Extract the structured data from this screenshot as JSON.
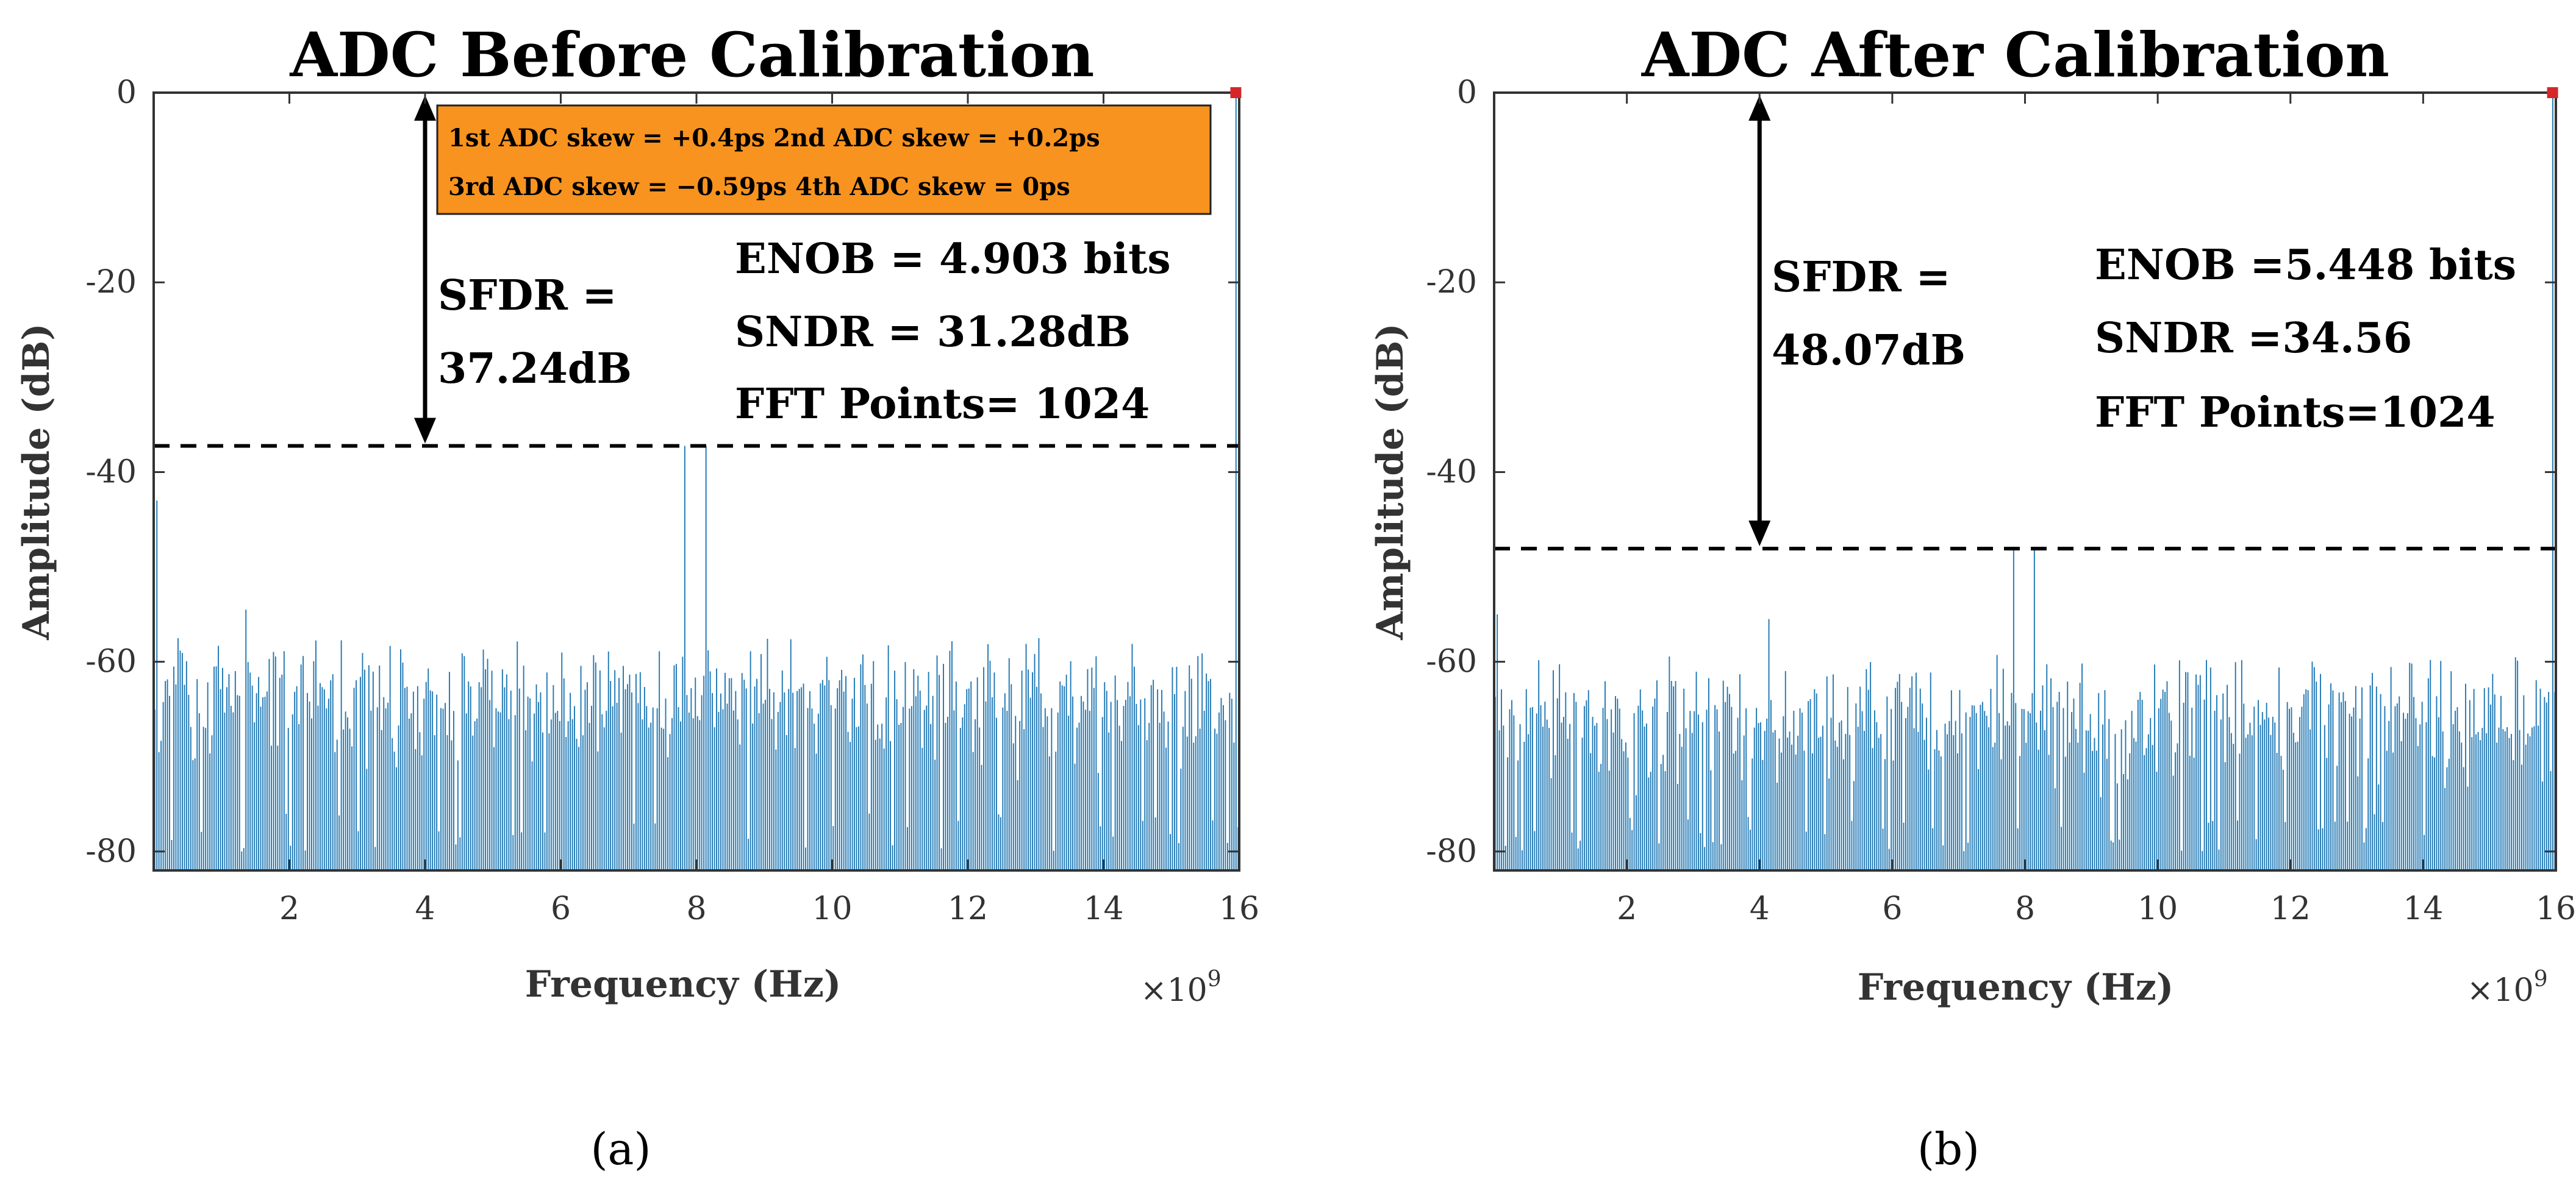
{
  "colors": {
    "bar": "#1f77b4",
    "skew_box": "#f7931e",
    "tone_marker": "#d62728",
    "axis": "#333333"
  },
  "chart_data": [
    {
      "type": "bar",
      "id": "a",
      "title": "ADC Before Calibration",
      "xlabel": "Frequency (Hz)",
      "ylabel": "Amplitude (dB)",
      "x_multiplier_label": "×10",
      "x_multiplier_exponent": "9",
      "xlim": [
        0,
        16
      ],
      "ylim": [
        -82,
        0
      ],
      "xticks": [
        2,
        4,
        6,
        8,
        10,
        12,
        14,
        16
      ],
      "yticks": [
        0,
        -20,
        -40,
        -60,
        -80
      ],
      "spectrum": {
        "points": 512,
        "floor_db": -82,
        "noise_range_db": [
          -80,
          -57
        ],
        "fundamental": {
          "x": 15.95,
          "y": 0
        },
        "spurs": [
          {
            "x": 7.83,
            "y": -37.24
          },
          {
            "x": 8.15,
            "y": -37.24
          },
          {
            "x": 0.05,
            "y": -43
          },
          {
            "x": 1.35,
            "y": -54.5
          }
        ],
        "seed": 11
      },
      "sfdr_line_db": -37.24,
      "arrow_x": 4,
      "sfdr_label": "SFDR =",
      "sfdr_value": "37.24dB",
      "metrics": [
        "ENOB = 4.903 bits",
        "SNDR = 31.28dB",
        "FFT Points= 1024"
      ],
      "skew_box": [
        "1st ADC skew = +0.4ps   2nd ADC skew = +0.2ps",
        "3rd ADC skew = −0.59ps 4th ADC skew = 0ps"
      ],
      "caption": "(a)"
    },
    {
      "type": "bar",
      "id": "b",
      "title": "ADC After Calibration",
      "xlabel": "Frequency (Hz)",
      "ylabel": "Amplitude (dB)",
      "x_multiplier_label": "×10",
      "x_multiplier_exponent": "9",
      "xlim": [
        0,
        16
      ],
      "ylim": [
        -82,
        0
      ],
      "xticks": [
        2,
        4,
        6,
        8,
        10,
        12,
        14,
        16
      ],
      "yticks": [
        0,
        -20,
        -40,
        -60,
        -80
      ],
      "spectrum": {
        "points": 512,
        "floor_db": -82,
        "noise_range_db": [
          -80,
          -59
        ],
        "fundamental": {
          "x": 15.95,
          "y": 0
        },
        "spurs": [
          {
            "x": 7.83,
            "y": -48.07
          },
          {
            "x": 8.15,
            "y": -48.07
          },
          {
            "x": 0.05,
            "y": -55
          },
          {
            "x": 4.15,
            "y": -55.5
          }
        ],
        "seed": 29
      },
      "sfdr_line_db": -48.07,
      "arrow_x": 4,
      "sfdr_label": "SFDR =",
      "sfdr_value": "48.07dB",
      "metrics": [
        "ENOB =5.448 bits",
        "SNDR =34.56",
        "FFT Points=1024"
      ],
      "skew_box": null,
      "caption": "(b)"
    }
  ]
}
